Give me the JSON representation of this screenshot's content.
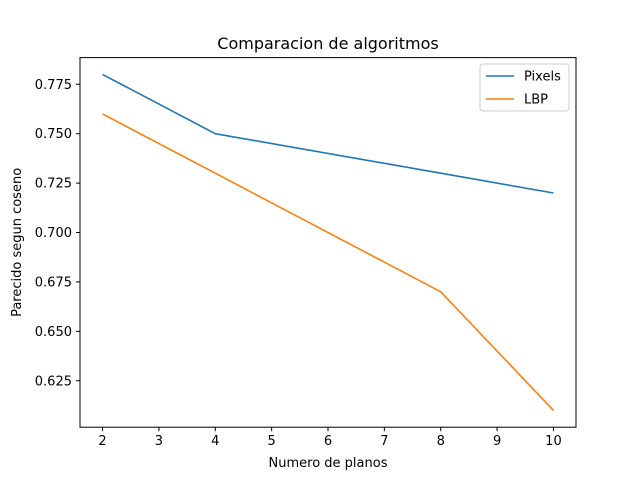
{
  "chart_data": {
    "type": "line",
    "title": "Comparacion de algoritmos",
    "xlabel": "Numero de planos",
    "ylabel": "Parecido segun coseno",
    "x": [
      2,
      4,
      8,
      10
    ],
    "series": [
      {
        "name": "Pixels",
        "values": [
          0.78,
          0.75,
          0.73,
          0.72
        ],
        "color": "#1f77b4"
      },
      {
        "name": "LBP",
        "values": [
          0.76,
          0.73,
          0.67,
          0.61
        ],
        "color": "#ff7f0e"
      }
    ],
    "xlim": [
      1.6,
      10.4
    ],
    "ylim": [
      0.6015,
      0.7885
    ],
    "xticks": [
      "2",
      "3",
      "4",
      "5",
      "6",
      "7",
      "8",
      "9",
      "10"
    ],
    "yticks": [
      "0.625",
      "0.650",
      "0.675",
      "0.700",
      "0.725",
      "0.750",
      "0.775"
    ],
    "grid": false,
    "legend_position": "top-right"
  }
}
